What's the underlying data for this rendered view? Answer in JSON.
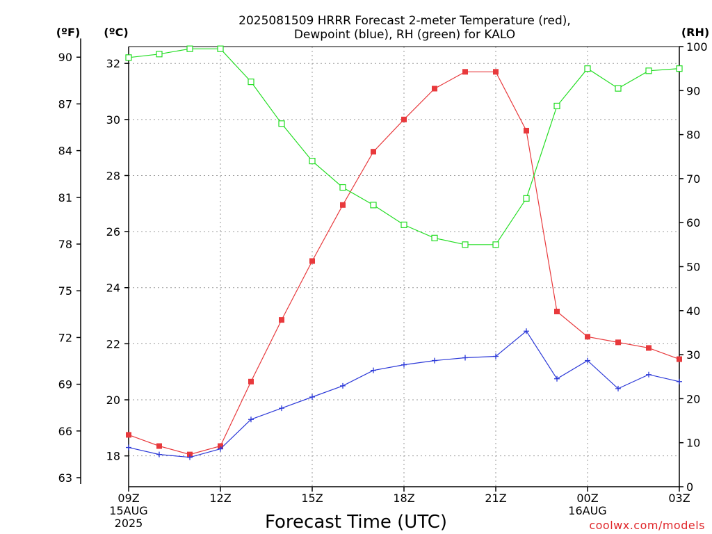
{
  "chart_data": {
    "type": "line",
    "title_lines": [
      "2025081509 HRRR Forecast 2-meter Temperature (red),",
      "Dewpoint (blue), RH (green) for KALO"
    ],
    "xlabel": "Forecast Time (UTC)",
    "unit_labels": {
      "fahrenheit": "(ºF)",
      "celsius": "(ºC)",
      "rh": "(RH)"
    },
    "x": [
      0,
      1,
      2,
      3,
      4,
      5,
      6,
      7,
      8,
      9,
      10,
      11,
      12,
      13,
      14,
      15,
      16,
      17,
      18
    ],
    "x_ticks": [
      {
        "x": 0,
        "label": "09Z",
        "sub": [
          "15AUG",
          "2025"
        ]
      },
      {
        "x": 3,
        "label": "12Z",
        "sub": []
      },
      {
        "x": 6,
        "label": "15Z",
        "sub": []
      },
      {
        "x": 9,
        "label": "18Z",
        "sub": []
      },
      {
        "x": 12,
        "label": "21Z",
        "sub": []
      },
      {
        "x": 15,
        "label": "00Z",
        "sub": [
          "16AUG"
        ]
      },
      {
        "x": 18,
        "label": "03Z",
        "sub": []
      }
    ],
    "xlim": [
      0,
      18
    ],
    "ylim_celsius": [
      16.9,
      32.6
    ],
    "celsius_ticks": [
      18,
      20,
      22,
      24,
      26,
      28,
      30,
      32
    ],
    "fahrenheit_ticks": [
      63,
      66,
      69,
      72,
      75,
      78,
      81,
      84,
      87,
      90
    ],
    "rh_ticks": [
      0,
      10,
      20,
      30,
      40,
      50,
      60,
      70,
      80,
      90,
      100
    ],
    "ylim_rh": [
      0,
      100
    ],
    "grid": true,
    "series": [
      {
        "key": "temperature",
        "axis": "celsius",
        "color": "#e8393c",
        "marker": "filled-square",
        "values": [
          18.75,
          18.35,
          18.05,
          18.35,
          20.65,
          22.85,
          24.95,
          26.95,
          28.85,
          30.0,
          31.1,
          31.7,
          31.7,
          29.6,
          23.15,
          22.25,
          22.05,
          21.85,
          21.45
        ]
      },
      {
        "key": "dewpoint",
        "axis": "celsius",
        "color": "#2b38d8",
        "marker": "plus",
        "values": [
          18.3,
          18.05,
          17.95,
          18.25,
          19.3,
          19.7,
          20.1,
          20.5,
          21.05,
          21.25,
          21.4,
          21.5,
          21.55,
          22.45,
          20.75,
          21.4,
          20.4,
          20.9,
          20.65
        ]
      },
      {
        "key": "rh",
        "axis": "rh",
        "color": "#22dd22",
        "marker": "open-square",
        "values": [
          97.5,
          98.3,
          99.5,
          99.5,
          92.0,
          82.5,
          74.0,
          68.0,
          64.0,
          59.5,
          56.5,
          55.0,
          55.0,
          65.5,
          86.5,
          95.0,
          90.5,
          94.5,
          95.0
        ]
      }
    ],
    "credit": "coolwx.com/models"
  }
}
